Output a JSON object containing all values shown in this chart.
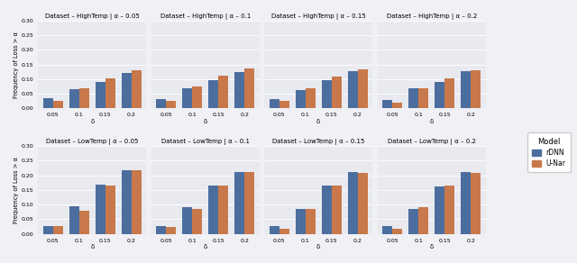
{
  "datasets": [
    "HighTemp",
    "LowTemp"
  ],
  "alphas": [
    "0.05",
    "0.1",
    "0.15",
    "0.2"
  ],
  "delta_labels": [
    "0.05",
    "0.1",
    "0.15",
    "0.2"
  ],
  "models": [
    "rDNN",
    "U-Nar"
  ],
  "bar_colors": [
    "#4c6e9e",
    "#c8784a"
  ],
  "ylabel": "Frequency of Loss > α",
  "xlabel": "δ",
  "ax_bg_color": "#e8eaf0",
  "fig_bg": "#f0f0f5",
  "legend_title": "Model",
  "data": {
    "HighTemp": {
      "0.05": {
        "rDNN": [
          0.035,
          0.065,
          0.09,
          0.12
        ],
        "U-Nar": [
          0.025,
          0.068,
          0.104,
          0.131
        ]
      },
      "0.1": {
        "rDNN": [
          0.031,
          0.069,
          0.096,
          0.124
        ],
        "U-Nar": [
          0.026,
          0.075,
          0.112,
          0.135
        ]
      },
      "0.15": {
        "rDNN": [
          0.032,
          0.063,
          0.096,
          0.127
        ],
        "U-Nar": [
          0.025,
          0.068,
          0.109,
          0.134
        ]
      },
      "0.2": {
        "rDNN": [
          0.03,
          0.068,
          0.091,
          0.127
        ],
        "U-Nar": [
          0.021,
          0.068,
          0.104,
          0.13
        ]
      }
    },
    "LowTemp": {
      "0.05": {
        "rDNN": [
          0.027,
          0.093,
          0.168,
          0.218
        ],
        "U-Nar": [
          0.028,
          0.08,
          0.165,
          0.218
        ]
      },
      "0.1": {
        "rDNN": [
          0.028,
          0.092,
          0.165,
          0.211
        ],
        "U-Nar": [
          0.025,
          0.086,
          0.165,
          0.21
        ]
      },
      "0.15": {
        "rDNN": [
          0.026,
          0.086,
          0.165,
          0.21
        ],
        "U-Nar": [
          0.019,
          0.086,
          0.164,
          0.209
        ]
      },
      "0.2": {
        "rDNN": [
          0.026,
          0.086,
          0.163,
          0.21
        ],
        "U-Nar": [
          0.019,
          0.09,
          0.165,
          0.209
        ]
      }
    }
  },
  "ylim": [
    0,
    0.3
  ],
  "yticks": [
    0.0,
    0.05,
    0.1,
    0.15,
    0.2,
    0.25,
    0.3
  ],
  "title_fontsize": 5.0,
  "tick_fontsize": 4.5,
  "label_fontsize": 5.0,
  "ylabel_fontsize": 4.8,
  "legend_fontsize": 5.5,
  "legend_title_fontsize": 6.0,
  "bar_width": 0.38
}
